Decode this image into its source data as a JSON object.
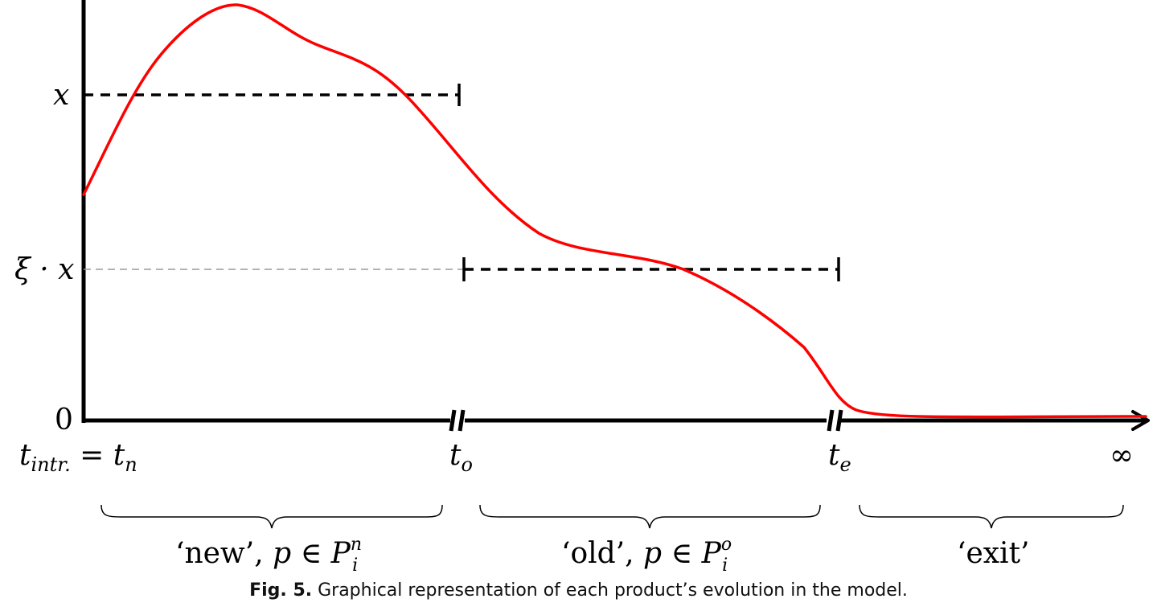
{
  "labels": {
    "y_x": "x",
    "y_xi_x": "ξ · x",
    "y_zero": "0",
    "t_intr": "t",
    "t_intr_sub": "intr.",
    "t_intr_eq": " = t",
    "t_n_sub": "n",
    "t_o": "t",
    "t_o_sub": "o",
    "t_e": "t",
    "t_e_sub": "e",
    "infinity": "∞"
  },
  "phases": {
    "new_text": "‘new’, ",
    "new_p": "p",
    "new_in": " ∈ ",
    "new_set": "P",
    "new_sub": "i",
    "new_sup": "n",
    "old_text": "‘old’, ",
    "old_p": "p",
    "old_in": " ∈ ",
    "old_set": "P",
    "old_sub": "i",
    "old_sup": "o",
    "exit_text": "‘exit’"
  },
  "caption": {
    "label": "Fig. 5.",
    "text": " Graphical representation of each product’s evolution in the model."
  },
  "colors": {
    "curve": "#ff0000",
    "axis": "#000000",
    "guide": "#999999"
  }
}
